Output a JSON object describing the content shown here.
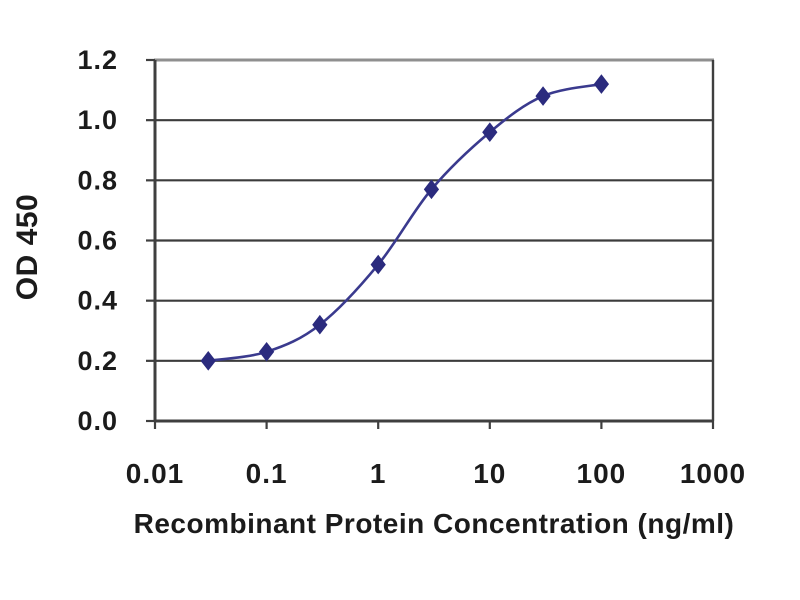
{
  "figure": {
    "kind": "ELISA standard curve plot",
    "background": "#ffffff"
  },
  "chart_data": {
    "type": "line",
    "title": "",
    "xlabel": "Recombinant Protein Concentration (ng/ml)",
    "ylabel": "OD 450",
    "x_scale": "log",
    "xlim": [
      0.01,
      1000
    ],
    "ylim": [
      0,
      1.2
    ],
    "x_ticks": [
      0.01,
      0.1,
      1,
      10,
      100,
      1000
    ],
    "x_tick_labels": [
      "0.01",
      "0.1",
      "1",
      "10",
      "100",
      "1000"
    ],
    "y_ticks": [
      0.0,
      0.2,
      0.4,
      0.6,
      0.8,
      1.0,
      1.2
    ],
    "y_tick_labels": [
      "0.0",
      "0.2",
      "0.4",
      "0.6",
      "0.8",
      "1.0",
      "1.2"
    ],
    "grid": "horizontal",
    "legend": "none",
    "series": [
      {
        "name": "OD 450 vs concentration",
        "marker": "diamond",
        "x": [
          0.03,
          0.1,
          0.3,
          1,
          3,
          10,
          30,
          100
        ],
        "y": [
          0.2,
          0.23,
          0.32,
          0.52,
          0.77,
          0.96,
          1.08,
          1.12
        ]
      }
    ],
    "colors": {
      "line": "#3a3a8e",
      "marker": "#2b2b7e",
      "grid": "#3c3c3c",
      "border_dark": "#3f3f3f",
      "border_top": "#8f8f8f",
      "tick_text": "#1b1b1b"
    }
  }
}
